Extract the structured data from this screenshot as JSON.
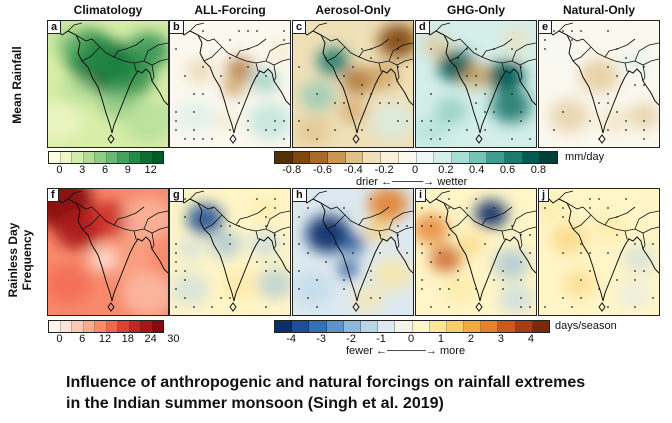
{
  "column_titles": [
    "Climatology",
    "ALL-Forcing",
    "Aerosol-Only",
    "GHG-Only",
    "Natural-Only"
  ],
  "row_labels": {
    "top": "Mean Rainfall",
    "bottom_line1": "Rainless Day",
    "bottom_line2": "Frequency"
  },
  "panels": {
    "top": [
      {
        "letter": "a",
        "scheme": "greens",
        "pattern": "clim_rain"
      },
      {
        "letter": "b",
        "scheme": "brbg",
        "pattern": "all_rain"
      },
      {
        "letter": "c",
        "scheme": "brbg",
        "pattern": "aer_rain"
      },
      {
        "letter": "d",
        "scheme": "brbg",
        "pattern": "ghg_rain"
      },
      {
        "letter": "e",
        "scheme": "brbg",
        "pattern": "nat_rain"
      }
    ],
    "bottom": [
      {
        "letter": "f",
        "scheme": "reds",
        "pattern": "clim_dry"
      },
      {
        "letter": "g",
        "scheme": "rdylbu",
        "pattern": "all_dry"
      },
      {
        "letter": "h",
        "scheme": "rdylbu",
        "pattern": "aer_dry"
      },
      {
        "letter": "i",
        "scheme": "rdylbu",
        "pattern": "ghg_dry"
      },
      {
        "letter": "j",
        "scheme": "rdylbu",
        "pattern": "nat_dry"
      }
    ]
  },
  "colorbars": {
    "rain_clim": {
      "colors": [
        "#ffffe0",
        "#eef6c4",
        "#d3ecab",
        "#b1dd98",
        "#8ecb85",
        "#6ab873",
        "#45a25d",
        "#238a47",
        "#0b6f35",
        "#005a2a"
      ],
      "ticks": [
        "0",
        "3",
        "6",
        "9",
        "12"
      ]
    },
    "rain_diff": {
      "colors": [
        "#543005",
        "#7f470e",
        "#a76a2a",
        "#c99653",
        "#dfc28a",
        "#efe0b8",
        "#f7f1dc",
        "#fbf8ef",
        "#eef7f5",
        "#d4eeea",
        "#a8ddd4",
        "#76c3b6",
        "#3f9d91",
        "#1c7a6f",
        "#035a50",
        "#01403a"
      ],
      "ticks": [
        "-0.8",
        "-0.6",
        "-0.4",
        "-0.2",
        "0",
        "0.2",
        "0.4",
        "0.6",
        "0.8"
      ],
      "unit": "mm/day",
      "left_word": "drier",
      "right_word": "wetter"
    },
    "dry_clim": {
      "colors": [
        "#fff5f0",
        "#fde3d6",
        "#fcc8b2",
        "#fbab8e",
        "#f88a6c",
        "#f2664e",
        "#e0402f",
        "#c72523",
        "#a71618",
        "#850b10"
      ],
      "ticks": [
        "0",
        "6",
        "12",
        "18",
        "24",
        "30"
      ]
    },
    "dry_diff": {
      "colors": [
        "#08306b",
        "#1c4f95",
        "#3470b4",
        "#5c94c8",
        "#8cb8da",
        "#b9d6e8",
        "#dde9f0",
        "#f3f3e8",
        "#fff5c7",
        "#fde69a",
        "#f9cd6a",
        "#f2aa46",
        "#e3812e",
        "#c95a1f",
        "#a43e14",
        "#7a2a0c"
      ],
      "ticks": [
        "-4",
        "-3",
        "-2",
        "-1",
        "0",
        "1",
        "2",
        "3",
        "4"
      ],
      "unit": "days/season",
      "left_word": "fewer",
      "right_word": "more"
    }
  },
  "caption": {
    "line1": "Influence of anthropogenic and natural forcings on rainfall extremes",
    "line2": "in the Indian summer monsoon (Singh et al. 2019)"
  }
}
